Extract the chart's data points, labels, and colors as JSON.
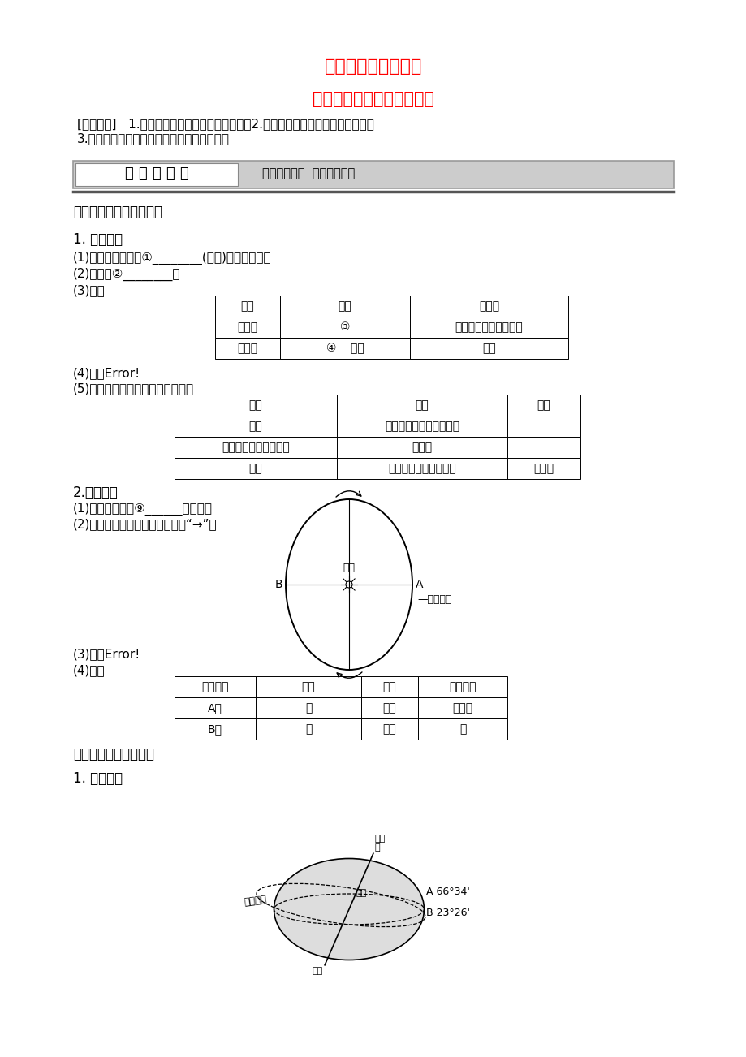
{
  "title1": "第三节　地球的运动",
  "title2": "第１课时　地球运动的特点",
  "title_color": "#FF0000",
  "bg_color": "#FFFFFF",
  "text_color": "#000000",
  "learning_line1": "[学习目标]   1.了解地球自转和公转的一般特点。2.掌握太阳直射点移动的一般规律。",
  "learning_line2": "3.运用地球运动的特点分析相关的自然现象。",
  "banner_left": "课 前 准 备 区",
  "banner_right": "自主学习教材  独立思考问题",
  "section1": "一、地球运动的一般特点",
  "subsec1": "1. 地球自转",
  "item1_1": "(1)概念：地球绕其①________(地轴)的旋转运动。",
  "item1_2": "(2)方向：②________。",
  "item1_3": "(3)周期",
  "table1_headers": [
    "名称",
    "长度",
    "参考点"
  ],
  "table1_row1": [
    "恒星日",
    "③",
    "距地球遥远的同一恒星"
  ],
  "table1_row2": [
    "太阳日",
    "④    小时",
    "太阳"
  ],
  "item1_4": "(4)速度Error!",
  "item1_5": "(5)影响地球自转线速度变化的因素",
  "table2_headers": [
    "因素",
    "影响",
    "关系"
  ],
  "table2_row1": [
    "纬度",
    "纬度相同，线速度相同；",
    ""
  ],
  "table2_row2": [
    "纬度越低，线速度越大",
    "负相关",
    ""
  ],
  "table2_row3": [
    "海拔",
    "海拔越高，线速度越大",
    "正相关"
  ],
  "subsec2": "2.地球公转",
  "item2_1": "(1)概念：地球绕⑨______的运动。",
  "item2_2": "(2)方向：自西向东，如图中所示“→”。",
  "item2_3": "(3)周期Error!",
  "item2_4": "(4)速度",
  "table3_headers": [
    "图中位置",
    "时间",
    "速度",
    "公转位置"
  ],
  "table3_row1": [
    "A点",
    "⑪",
    "较快",
    "近日点"
  ],
  "table3_row2": [
    "B点",
    "⑫",
    "较慢",
    "⑬"
  ],
  "section2": "二、太阳直射点的移动",
  "subsec3": "1. 黄赤交角",
  "sun_label": "太阳",
  "orbit_label": "—公转轨道",
  "angle_A": "A 66°34'",
  "angle_B": "B 23°26'",
  "north_pole": "北极\n点",
  "south_pole": "南极",
  "north_label": "北图",
  "ecliptic_label": "黄道平面"
}
